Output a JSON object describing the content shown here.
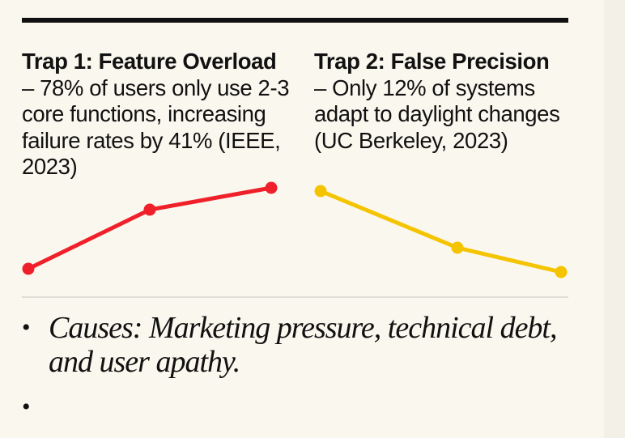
{
  "traps": [
    {
      "title": "Trap 1: Feature Overload",
      "body": "– 78% of users only use 2-3 core functions, increasing failure rates by 41% (IEEE, 2023)",
      "color": "#f0202a",
      "trend": "rising"
    },
    {
      "title": "Trap 2: False Precision",
      "body": "– Only 12% of systems adapt to daylight changes (UC Berkeley, 2023)",
      "color": "#f5c400",
      "trend": "falling"
    }
  ],
  "bullets": [
    "Causes: Marketing pressure, technical debt, and user apathy.",
    ""
  ]
}
